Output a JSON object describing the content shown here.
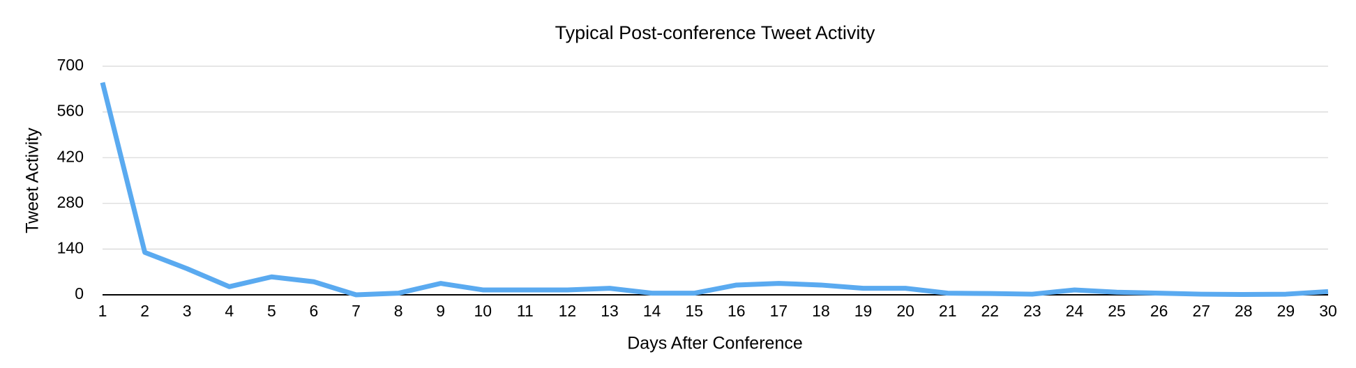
{
  "chart_data": {
    "type": "line",
    "title": "Typical Post-conference Tweet Activity",
    "xlabel": "Days After Conference",
    "ylabel": "Tweet Activity",
    "x": [
      1,
      2,
      3,
      4,
      5,
      6,
      7,
      8,
      9,
      10,
      11,
      12,
      13,
      14,
      15,
      16,
      17,
      18,
      19,
      20,
      21,
      22,
      23,
      24,
      25,
      26,
      27,
      28,
      29,
      30
    ],
    "series": [
      {
        "name": "Tweet Activity",
        "color": "#5aaaf0",
        "values": [
          650,
          130,
          80,
          25,
          55,
          40,
          0,
          5,
          35,
          15,
          15,
          15,
          20,
          5,
          5,
          30,
          35,
          30,
          20,
          20,
          5,
          4,
          2,
          15,
          8,
          5,
          2,
          1,
          2,
          10
        ]
      }
    ],
    "xlim": [
      1,
      30
    ],
    "xticks": [
      1,
      2,
      3,
      4,
      5,
      6,
      7,
      8,
      9,
      10,
      11,
      12,
      13,
      14,
      15,
      16,
      17,
      18,
      19,
      20,
      21,
      22,
      23,
      24,
      25,
      26,
      27,
      28,
      29,
      30
    ],
    "ylim": [
      0,
      700
    ],
    "yticks": [
      0,
      140,
      280,
      420,
      560,
      700
    ],
    "grid": true
  }
}
